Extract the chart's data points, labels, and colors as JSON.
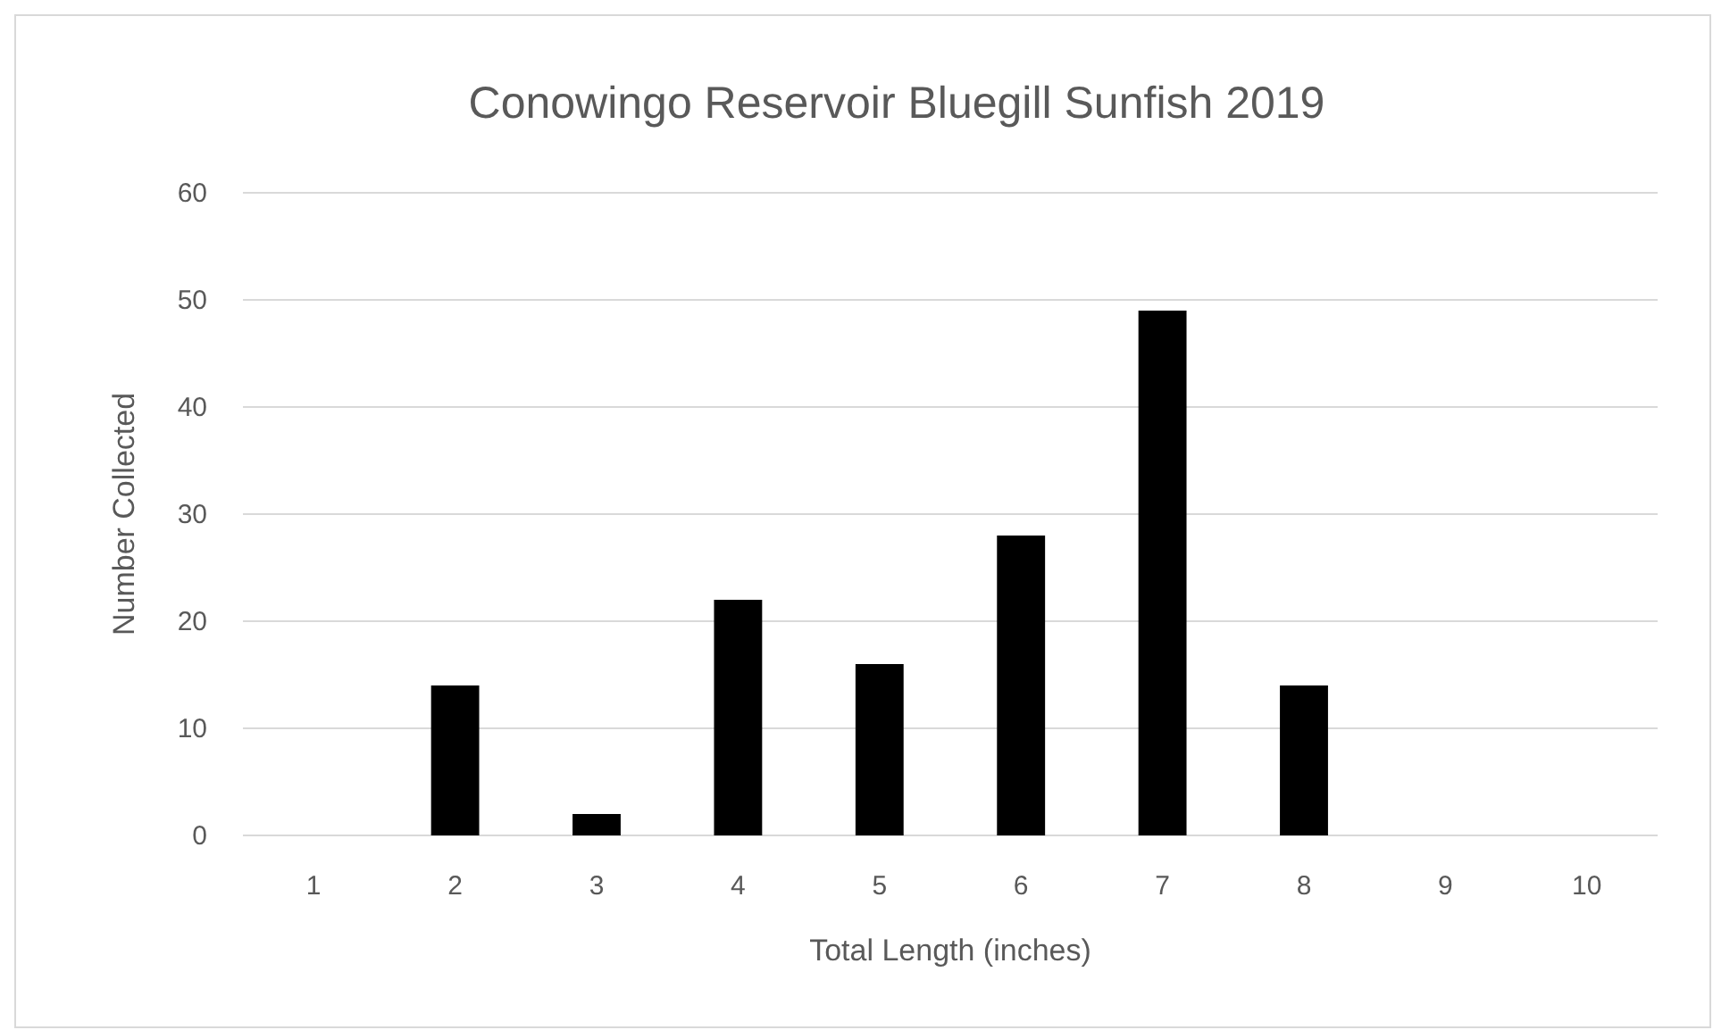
{
  "chart_data": {
    "type": "bar",
    "title": "Conowingo Reservoir Bluegill Sunfish 2019",
    "xlabel": "Total Length (inches)",
    "ylabel": "Number Collected",
    "categories": [
      "1",
      "2",
      "3",
      "4",
      "5",
      "6",
      "7",
      "8",
      "9",
      "10"
    ],
    "values": [
      0,
      14,
      2,
      22,
      16,
      28,
      49,
      14,
      0,
      0
    ],
    "color": "#000000",
    "ylim": [
      0,
      60
    ],
    "yticks": [
      0,
      10,
      20,
      30,
      40,
      50,
      60
    ],
    "grid": "y"
  }
}
